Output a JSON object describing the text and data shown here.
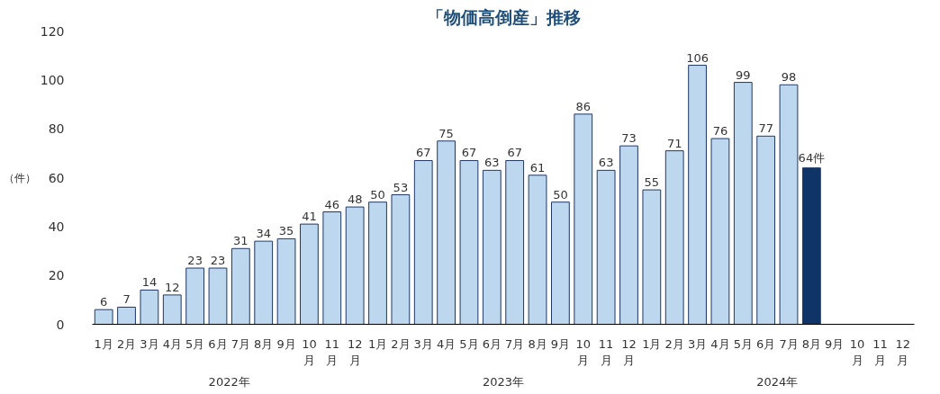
{
  "chart_data": {
    "type": "bar",
    "title": "「物価高倒産」推移",
    "ylabel": "（件）",
    "categories": [
      "1月",
      "2月",
      "3月",
      "4月",
      "5月",
      "6月",
      "7月",
      "8月",
      "9月",
      "10月",
      "11月",
      "12月",
      "1月",
      "2月",
      "3月",
      "4月",
      "5月",
      "6月",
      "7月",
      "8月",
      "9月",
      "10月",
      "11月",
      "12月",
      "1月",
      "2月",
      "3月",
      "4月",
      "5月",
      "6月",
      "7月",
      "8月",
      "9月",
      "10月",
      "11月",
      "12月"
    ],
    "values": [
      6,
      7,
      14,
      12,
      23,
      23,
      31,
      34,
      35,
      41,
      46,
      48,
      50,
      53,
      67,
      75,
      67,
      63,
      67,
      61,
      50,
      86,
      63,
      73,
      55,
      71,
      106,
      76,
      99,
      77,
      98,
      64,
      null,
      null,
      null,
      null
    ],
    "value_labels": [
      "6",
      "7",
      "14",
      "12",
      "23",
      "23",
      "31",
      "34",
      "35",
      "41",
      "46",
      "48",
      "50",
      "53",
      "67",
      "75",
      "67",
      "63",
      "67",
      "61",
      "50",
      "86",
      "63",
      "73",
      "55",
      "71",
      "106",
      "76",
      "99",
      "77",
      "98",
      "64件",
      null,
      null,
      null,
      null
    ],
    "colors": [
      "#bdd7ee",
      "#bdd7ee",
      "#bdd7ee",
      "#bdd7ee",
      "#bdd7ee",
      "#bdd7ee",
      "#bdd7ee",
      "#bdd7ee",
      "#bdd7ee",
      "#bdd7ee",
      "#bdd7ee",
      "#bdd7ee",
      "#bdd7ee",
      "#bdd7ee",
      "#bdd7ee",
      "#bdd7ee",
      "#bdd7ee",
      "#bdd7ee",
      "#bdd7ee",
      "#bdd7ee",
      "#bdd7ee",
      "#bdd7ee",
      "#bdd7ee",
      "#bdd7ee",
      "#bdd7ee",
      "#bdd7ee",
      "#bdd7ee",
      "#bdd7ee",
      "#bdd7ee",
      "#bdd7ee",
      "#bdd7ee",
      "#0e3468",
      "#bdd7ee",
      "#bdd7ee",
      "#bdd7ee",
      "#bdd7ee"
    ],
    "ylim": [
      0,
      120
    ],
    "yticks": [
      0,
      20,
      40,
      60,
      80,
      100,
      120
    ],
    "grid": false,
    "annotations": [
      "2022年",
      "2023年",
      "2024年"
    ]
  }
}
